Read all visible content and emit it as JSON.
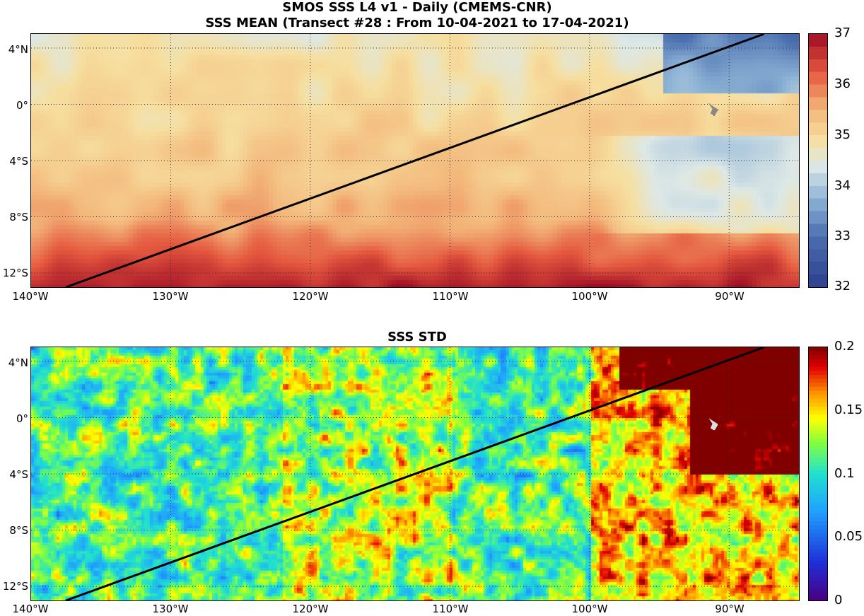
{
  "title_line1": "SMOS SSS L4 v1 - Daily (CMEMS-CNR)",
  "title_line2": "SSS MEAN (Transect #28 : From 10-04-2021 to 17-04-2021)",
  "std_title": "SSS STD",
  "lat_ticks": [
    "4°N",
    "0°",
    "4°S",
    "8°S",
    "12°S"
  ],
  "lon_ticks": [
    "140°W",
    "130°W",
    "120°W",
    "110°W",
    "100°W",
    "90°W"
  ],
  "mean_colorbar": {
    "ticks": [
      "37",
      "36",
      "35",
      "34",
      "33",
      "32"
    ],
    "min": 32,
    "max": 37
  },
  "std_colorbar": {
    "ticks": [
      "0.2",
      "0.15",
      "0.1",
      "0.05",
      "0"
    ],
    "min": 0,
    "max": 0.2
  },
  "map_extent": {
    "lon_min": -140,
    "lon_max": -85,
    "lat_min": -13,
    "lat_max": 5
  },
  "transect": {
    "from": [
      -137.5,
      -13
    ],
    "to": [
      -87.5,
      5
    ],
    "color": "#000000"
  },
  "colors": {
    "mean_low": "#3a4f9e",
    "mean_mid": "#f5e6b0",
    "mean_high": "#c8202a",
    "std_low": "#4b0080",
    "std_mid": "#00e0ff",
    "std_high": "#8b0000"
  }
}
